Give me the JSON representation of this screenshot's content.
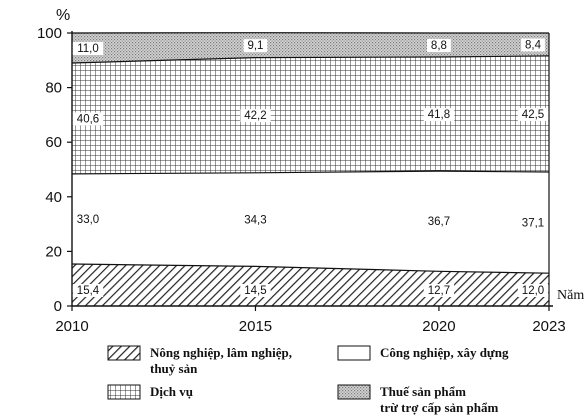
{
  "chart_data": {
    "type": "area",
    "ylabel": "%",
    "xlabel": "Năm",
    "ylim": [
      0,
      100
    ],
    "yticks": [
      "0",
      "20",
      "40",
      "60",
      "80",
      "100"
    ],
    "x": [
      "2010",
      "2015",
      "2020",
      "2023"
    ],
    "series": [
      {
        "name": "Nông nghiệp, lâm nghiệp, thuỷ sản",
        "values": [
          15.4,
          14.5,
          12.7,
          12.0
        ],
        "labels": [
          "15,4",
          "14,5",
          "12,7",
          "12,0"
        ]
      },
      {
        "name": "Công nghiệp, xây dựng",
        "values": [
          33.0,
          34.3,
          36.7,
          37.1
        ],
        "labels": [
          "33,0",
          "34,3",
          "36,7",
          "37,1"
        ]
      },
      {
        "name": "Dịch vụ",
        "values": [
          40.6,
          42.2,
          41.8,
          42.5
        ],
        "labels": [
          "40,6",
          "42,2",
          "41,8",
          "42,5"
        ]
      },
      {
        "name": "Thuế sản phẩm trừ trợ cấp sản phẩm",
        "values": [
          11.0,
          9.1,
          8.8,
          8.4
        ],
        "labels": [
          "11,0",
          "9,1",
          "8,8",
          "8,4"
        ]
      }
    ],
    "legend": {
      "placement": "bottom",
      "items": [
        {
          "line1": "Nông nghiệp, lâm nghiệp,",
          "line2": "thuỷ sản"
        },
        {
          "line1": "Công nghiệp, xây dựng",
          "line2": ""
        },
        {
          "line1": "Dịch vụ",
          "line2": ""
        },
        {
          "line1": "Thuế sản phẩm",
          "line2": "trừ trợ cấp sản phẩm"
        }
      ]
    },
    "grid": false
  }
}
